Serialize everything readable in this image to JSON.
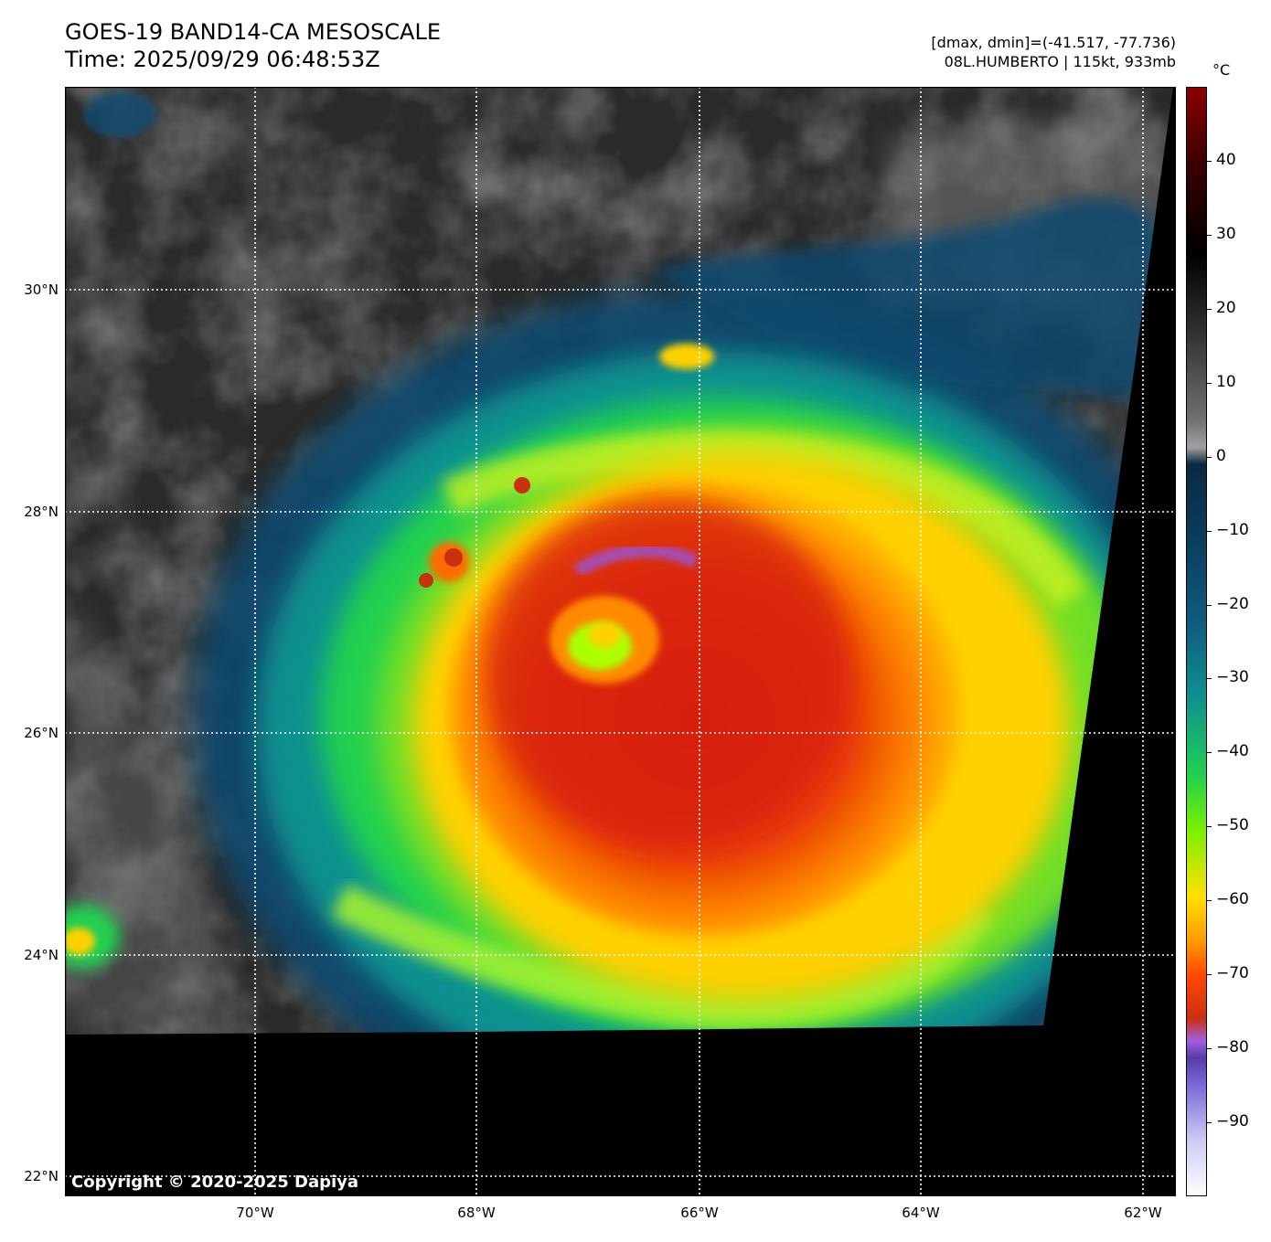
{
  "header": {
    "title_line1": "GOES-19 BAND14-CA MESOSCALE",
    "title_line2": "Time: 2025/09/29 06:48:53Z",
    "data_range": "[dmax, dmin]=(-41.517, -77.736)",
    "storm_info": "08L.HUMBERTO | 115kt, 933mb"
  },
  "map": {
    "lat_ticks": [
      "30°N",
      "28°N",
      "26°N",
      "24°N",
      "22°N"
    ],
    "lon_ticks": [
      "70°W",
      "68°W",
      "66°W",
      "64°W",
      "62°W"
    ],
    "copyright": "Copyright © 2020-2025 Dapiya"
  },
  "colorbar": {
    "unit": "°C",
    "ticks": [
      "40",
      "30",
      "20",
      "10",
      "0",
      "−10",
      "−20",
      "−30",
      "−40",
      "−50",
      "−60",
      "−70",
      "−80",
      "−90"
    ],
    "range": [
      -100,
      50
    ],
    "colors": [
      "#ffffff",
      "#4a3aa0",
      "#9a55d8",
      "#c83010",
      "#ff6a00",
      "#ffd000",
      "#aaff00",
      "#20d050",
      "#109090",
      "#0e4a6e",
      "#0a2a40",
      "#b0b0b0",
      "#404040",
      "#000000",
      "#3a0000",
      "#8b0000"
    ]
  }
}
